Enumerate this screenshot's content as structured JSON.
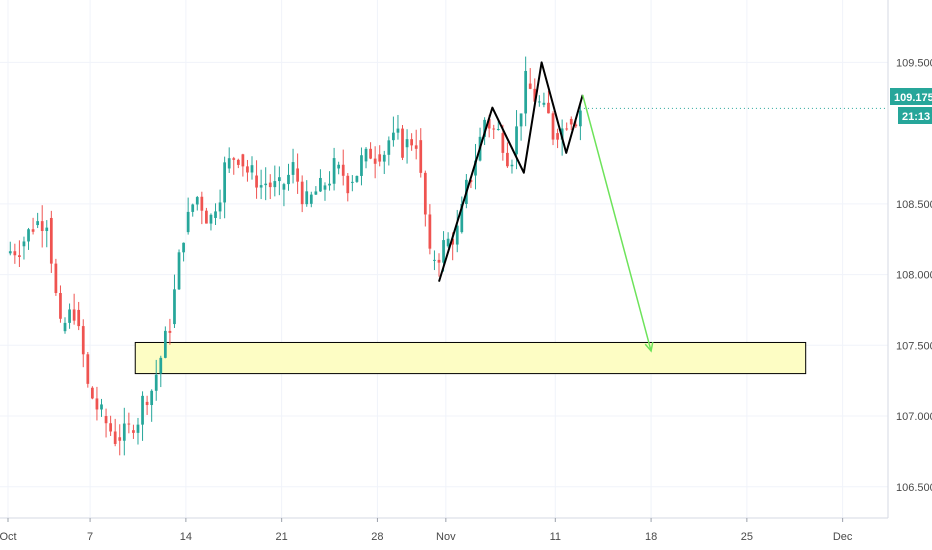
{
  "chart_data": {
    "type": "candlestick",
    "y_axis": {
      "position": "right",
      "range": [
        106.35,
        109.87
      ],
      "ticks": [
        "106.500",
        "107.000",
        "107.500",
        "108.000",
        "108.500",
        "109.500"
      ]
    },
    "x_axis": {
      "range": [
        0,
        63
      ],
      "ticks": [
        {
          "label": "Oct",
          "x": 0
        },
        {
          "label": "7",
          "x": 6
        },
        {
          "label": "14",
          "x": 13
        },
        {
          "label": "21",
          "x": 20
        },
        {
          "label": "28",
          "x": 27
        },
        {
          "label": "Nov",
          "x": 32
        },
        {
          "label": "11",
          "x": 40
        },
        {
          "label": "18",
          "x": 47
        },
        {
          "label": "25",
          "x": 54
        },
        {
          "label": "Dec",
          "x": 61
        }
      ]
    },
    "colors": {
      "up": "#26a69a",
      "down": "#ef5350",
      "pattern_line": "#000000",
      "projection_arrow": "#6de35a",
      "zone_fill": "#fdfdc4",
      "zone_border": "#000000",
      "price_tag": "#26a69a",
      "grid": "#f0f3fa"
    },
    "price_tag": {
      "value": "109.175",
      "countdown": "21:13",
      "price": 109.175
    },
    "zone": {
      "x_start": 9.3,
      "x_end": 58.3,
      "y_low": 107.3,
      "y_high": 107.52
    },
    "pattern_lines": [
      {
        "points": [
          [
            31.5,
            107.95
          ],
          [
            35.4,
            109.18
          ],
          [
            37.7,
            108.72
          ],
          [
            39.0,
            109.5
          ],
          [
            40.8,
            108.86
          ],
          [
            42.0,
            109.27
          ]
        ]
      }
    ],
    "projection_arrow": {
      "from": [
        42.0,
        109.27
      ],
      "to": [
        47.0,
        107.46
      ]
    },
    "series_closes": [
      108.2,
      108.35,
      108.4,
      107.6,
      107.75,
      107.2,
      107.0,
      106.85,
      106.9,
      107.1,
      107.3,
      107.65,
      108.3,
      108.55,
      108.4,
      108.75,
      108.85,
      108.7,
      108.65,
      108.6,
      108.75,
      108.5,
      108.6,
      108.75,
      108.65,
      108.8,
      108.85,
      108.95,
      108.9,
      108.95,
      108.1,
      108.2,
      108.3,
      108.7,
      109.1,
      109.0,
      108.85,
      109.35,
      109.2,
      109.0,
      109.1,
      109.175
    ],
    "candles_per_session": 3
  }
}
